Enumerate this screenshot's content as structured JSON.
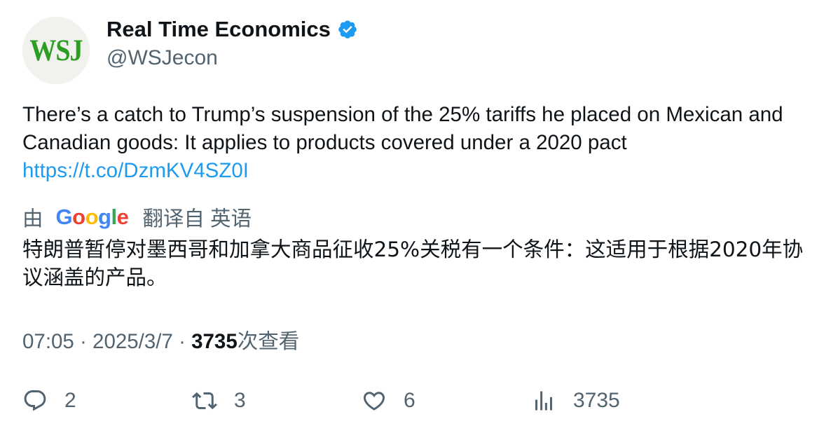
{
  "author": {
    "avatar_text": "WSJ",
    "display_name": "Real Time Economics",
    "handle": "@WSJecon",
    "verified_icon": "verified-badge-icon"
  },
  "tweet": {
    "text": "There’s a catch to Trump’s suspension of the 25% tariffs he placed on Mexican and Canadian goods: It applies to products covered under a 2020 pact",
    "link": "https://t.co/DzmKV4SZ0I"
  },
  "translation": {
    "by_label": "由",
    "provider_letters": [
      "G",
      "o",
      "o",
      "g",
      "l",
      "e"
    ],
    "from_label": "翻译自 英语",
    "text": "特朗普暂停对墨西哥和加拿大商品征收25%关税有一个条件：这适用于根据2020年协议涵盖的产品。"
  },
  "meta": {
    "time": "07:05",
    "separator": " · ",
    "date": "2025/3/7",
    "views_count": "3735",
    "views_label": "次查看"
  },
  "actions": {
    "replies": "2",
    "retweets": "3",
    "likes": "6",
    "views": "3735"
  },
  "colors": {
    "text_primary": "#0f1419",
    "text_secondary": "#536471",
    "link": "#1d9bf0",
    "verified": "#1d9bf0",
    "wsj_logo": "#2a9d23"
  }
}
